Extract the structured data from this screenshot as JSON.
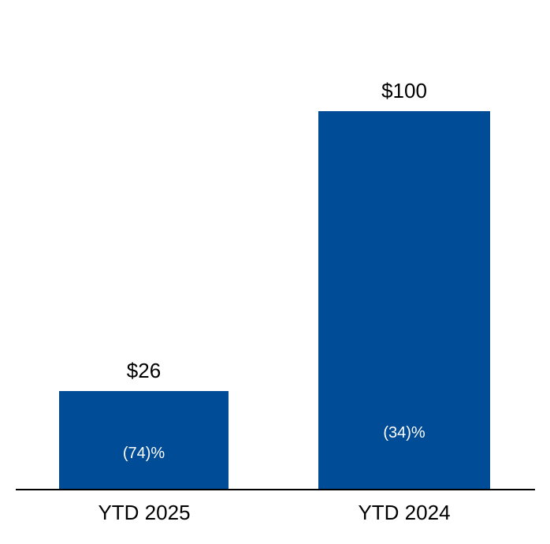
{
  "chart_data": {
    "type": "bar",
    "categories": [
      "YTD 2025",
      "YTD 2024"
    ],
    "values": [
      26,
      100
    ],
    "value_labels": [
      "$26",
      "$100"
    ],
    "inner_labels": [
      "(74)%",
      "(34)%"
    ],
    "ylim": [
      0,
      100
    ],
    "gridlines": false,
    "legend_position": "none",
    "bar_color": "#004C97",
    "inner_label_color": "#FFFFFF",
    "value_label_color": "#000000",
    "axis_line_color": "#000000",
    "background_color": "#FFFFFF"
  }
}
